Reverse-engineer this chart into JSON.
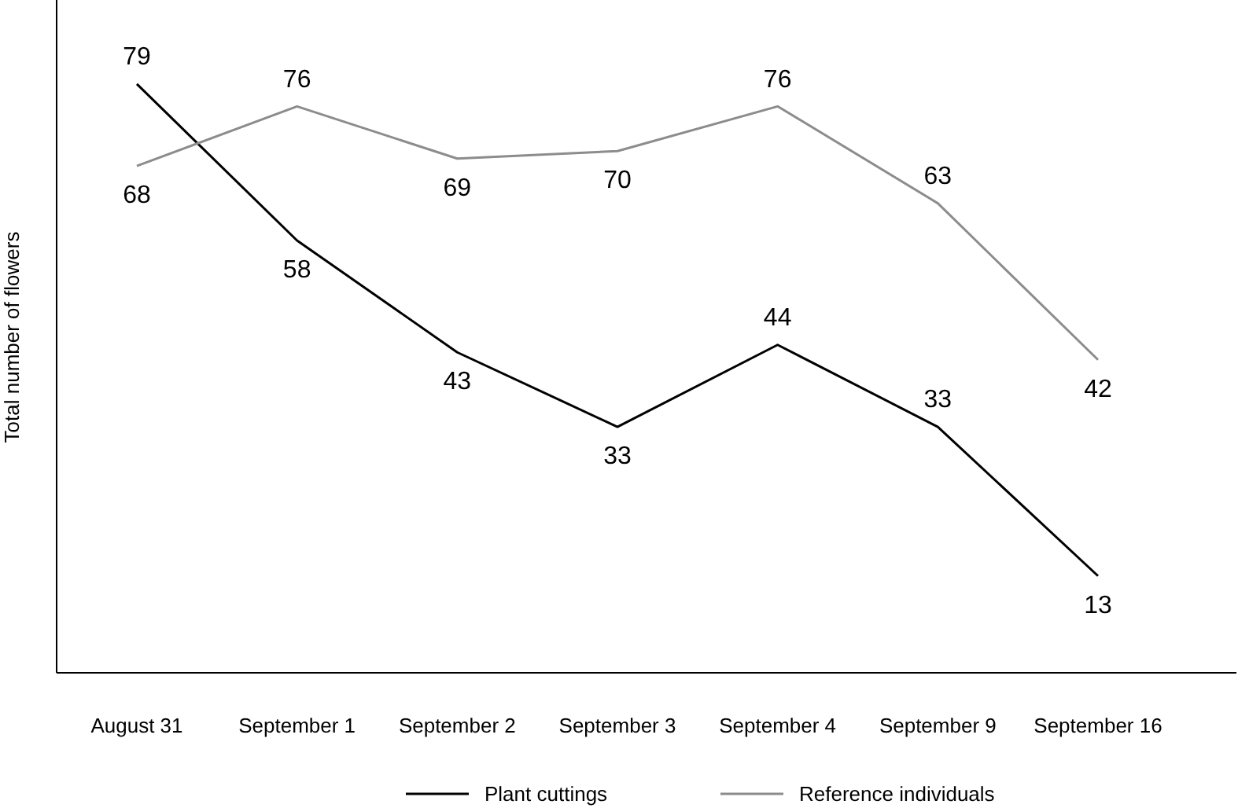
{
  "chart_data": {
    "type": "line",
    "ylabel": "Total number of flowers",
    "categories": [
      "August 31",
      "September 1",
      "September 2",
      "September 3",
      "September 4",
      "September 9",
      "September 16"
    ],
    "series": [
      {
        "name": "Plant cuttings",
        "color": "#000000",
        "values": [
          79,
          58,
          43,
          33,
          44,
          33,
          13
        ]
      },
      {
        "name": "Reference individuals",
        "color": "#8c8c8c",
        "values": [
          68,
          76,
          69,
          70,
          76,
          63,
          42
        ]
      }
    ],
    "data_labels": true,
    "legend": "bottom",
    "grid": false,
    "tick_labels": "x",
    "marker": "none",
    "line_style": "solid"
  }
}
